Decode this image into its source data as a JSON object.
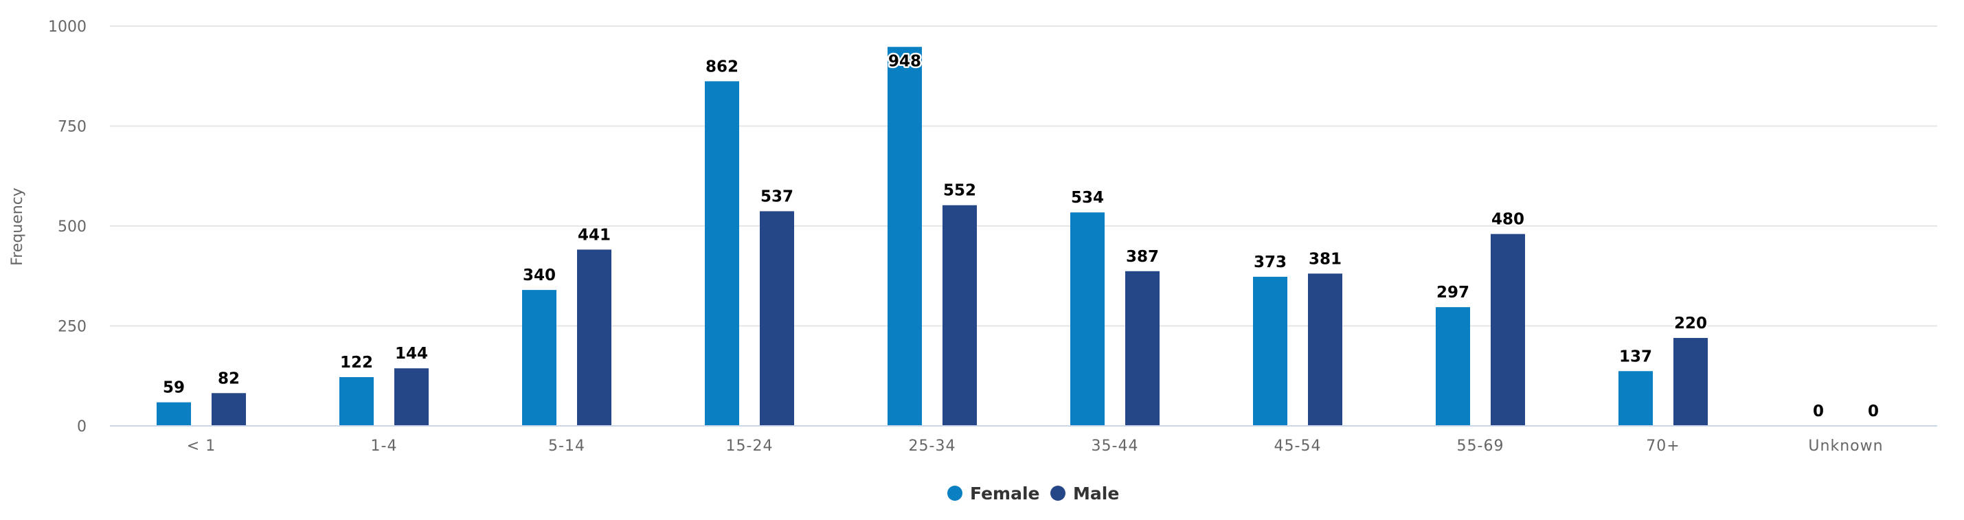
{
  "chart_data": {
    "type": "bar",
    "title": "",
    "xlabel": "",
    "ylabel": "Frequency",
    "ylim": [
      0,
      1000
    ],
    "yticks": [
      0,
      250,
      500,
      750,
      1000
    ],
    "grid": true,
    "legend_position": "bottom-center",
    "categories": [
      "< 1",
      "1-4",
      "5-14",
      "15-24",
      "25-34",
      "35-44",
      "45-54",
      "55-69",
      "70+",
      "Unknown"
    ],
    "series": [
      {
        "name": "Female",
        "color": "#0a7fc2",
        "values": [
          59,
          122,
          340,
          862,
          948,
          534,
          373,
          297,
          137,
          0
        ]
      },
      {
        "name": "Male",
        "color": "#264787",
        "values": [
          82,
          144,
          441,
          537,
          552,
          387,
          381,
          480,
          220,
          0
        ]
      }
    ]
  }
}
